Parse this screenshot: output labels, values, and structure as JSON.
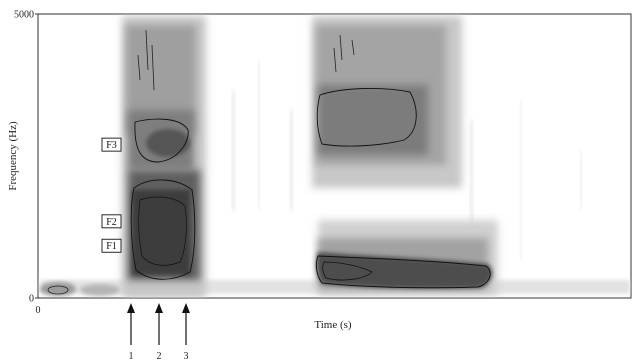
{
  "chart_data": {
    "type": "heatmap",
    "title": "",
    "xlabel": "Time (s)",
    "ylabel": "Frequency (Hz)",
    "ylim": [
      0,
      5000
    ],
    "x_tick_labels": [
      "0"
    ],
    "y_tick_labels": [
      "0",
      "5000"
    ],
    "grid": false,
    "legend": "none",
    "formant_labels": [
      {
        "label": "F3",
        "frequency_hz": 2700
      },
      {
        "label": "F2",
        "frequency_hz": 1350
      },
      {
        "label": "F1",
        "frequency_hz": 920
      }
    ],
    "time_markers": [
      "1",
      "2",
      "3"
    ],
    "colors": {
      "dark": "#3c3c3c",
      "mid": "#7a7a7a",
      "light": "#c2c2c2",
      "contour": "#000000"
    }
  }
}
